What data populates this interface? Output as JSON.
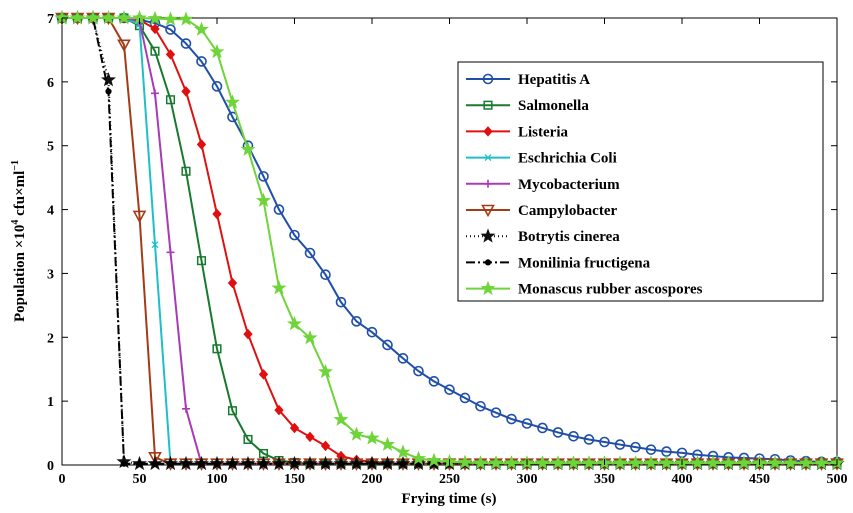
{
  "chart_data": {
    "type": "line",
    "title": "",
    "xlabel": "Frying time (s)",
    "ylabel": "Population ×10",
    "ylabel_sup": "4",
    "ylabel_unit": " cfu×ml",
    "ylabel_unit_sup": "−1",
    "xlim": [
      0,
      500
    ],
    "ylim": [
      0,
      7
    ],
    "xticks": [
      0,
      50,
      100,
      150,
      200,
      250,
      300,
      350,
      400,
      450,
      500
    ],
    "yticks": [
      0,
      1,
      2,
      3,
      4,
      5,
      6,
      7
    ],
    "grid": false,
    "legend_position": "top-right",
    "series": [
      {
        "name": "Hepatitis A",
        "color": "#1f4fa8",
        "marker": "circle",
        "dash": "",
        "x": [
          0,
          10,
          20,
          30,
          40,
          50,
          60,
          70,
          80,
          90,
          100,
          110,
          120,
          130,
          140,
          150,
          160,
          170,
          180,
          190,
          200,
          210,
          220,
          230,
          240,
          250,
          260,
          270,
          280,
          290,
          300,
          310,
          320,
          330,
          340,
          350,
          360,
          370,
          380,
          390,
          400,
          410,
          420,
          430,
          440,
          450,
          460,
          470,
          480,
          490,
          500
        ],
        "y": [
          7,
          7,
          7,
          7,
          7,
          6.97,
          6.92,
          6.82,
          6.6,
          6.32,
          5.93,
          5.45,
          5.0,
          4.52,
          4.0,
          3.6,
          3.32,
          2.98,
          2.55,
          2.25,
          2.08,
          1.88,
          1.67,
          1.47,
          1.31,
          1.18,
          1.05,
          0.92,
          0.82,
          0.72,
          0.65,
          0.58,
          0.51,
          0.45,
          0.4,
          0.36,
          0.32,
          0.28,
          0.24,
          0.21,
          0.19,
          0.16,
          0.14,
          0.12,
          0.11,
          0.1,
          0.09,
          0.07,
          0.06,
          0.05,
          0.05
        ]
      },
      {
        "name": "Salmonella",
        "color": "#177a2e",
        "marker": "square",
        "dash": "",
        "x": [
          0,
          10,
          20,
          30,
          40,
          50,
          60,
          70,
          80,
          90,
          100,
          110,
          120,
          130,
          140,
          150,
          160,
          170,
          180,
          190,
          200,
          210,
          220,
          230,
          240,
          250,
          260,
          270,
          280,
          290,
          300,
          310,
          320,
          330,
          340,
          350,
          360,
          370,
          380,
          390,
          400,
          410,
          420,
          430,
          440,
          450,
          460,
          470,
          480,
          490,
          500
        ],
        "y": [
          7,
          7,
          7,
          7,
          7,
          6.88,
          6.48,
          5.72,
          4.6,
          3.2,
          1.82,
          0.85,
          0.4,
          0.18,
          0.07,
          0.04,
          0.02,
          0.02,
          0.02,
          0.02,
          0.02,
          0.02,
          0.02,
          0.02,
          0.02,
          0.02,
          0.02,
          0.02,
          0.02,
          0.02,
          0.02,
          0.02,
          0.02,
          0.02,
          0.02,
          0.02,
          0.02,
          0.02,
          0.02,
          0.02,
          0.02,
          0.02,
          0.02,
          0.02,
          0.02,
          0.02,
          0.02,
          0.02,
          0.02,
          0.02,
          0.02
        ]
      },
      {
        "name": "Listeria",
        "color": "#e01010",
        "marker": "diamond",
        "dash": "",
        "x": [
          0,
          10,
          20,
          30,
          40,
          50,
          60,
          70,
          80,
          90,
          100,
          110,
          120,
          130,
          140,
          150,
          160,
          170,
          180,
          190,
          200,
          210,
          220,
          230,
          240,
          250,
          260,
          270,
          280,
          290,
          300,
          310,
          320,
          330,
          340,
          350,
          360,
          370,
          380,
          390,
          400,
          410,
          420,
          430,
          440,
          450,
          460,
          470,
          480,
          490,
          500
        ],
        "y": [
          7,
          7,
          7,
          7,
          7,
          6.97,
          6.83,
          6.43,
          5.85,
          5.02,
          3.93,
          2.85,
          2.05,
          1.42,
          0.86,
          0.58,
          0.44,
          0.3,
          0.14,
          0.08,
          0.05,
          0.03,
          0.02,
          0.02,
          0.02,
          0.02,
          0.02,
          0.02,
          0.02,
          0.02,
          0.02,
          0.02,
          0.02,
          0.02,
          0.02,
          0.02,
          0.02,
          0.02,
          0.02,
          0.02,
          0.02,
          0.02,
          0.02,
          0.02,
          0.02,
          0.02,
          0.02,
          0.02,
          0.02,
          0.02,
          0.02
        ]
      },
      {
        "name": "Eschrichia Coli",
        "color": "#1fbfc7",
        "marker": "x",
        "dash": "",
        "x": [
          0,
          10,
          20,
          30,
          40,
          50,
          60,
          70,
          80,
          90,
          100,
          110,
          120,
          130,
          140,
          150,
          160,
          170,
          180,
          190,
          200,
          210,
          220,
          230,
          240,
          250,
          260,
          270,
          280,
          290,
          300,
          310,
          320,
          330,
          340,
          350,
          360,
          370,
          380,
          390,
          400,
          410,
          420,
          430,
          440,
          450,
          460,
          470,
          480,
          490,
          500
        ],
        "y": [
          7,
          7,
          7,
          7,
          7,
          6.9,
          3.45,
          0.02,
          0.02,
          0.02,
          0.02,
          0.02,
          0.02,
          0.02,
          0.02,
          0.02,
          0.02,
          0.02,
          0.02,
          0.02,
          0.02,
          0.02,
          0.02,
          0.02,
          0.02,
          0.02,
          0.02,
          0.02,
          0.02,
          0.02,
          0.02,
          0.02,
          0.02,
          0.02,
          0.02,
          0.02,
          0.02,
          0.02,
          0.02,
          0.02,
          0.02,
          0.02,
          0.02,
          0.02,
          0.02,
          0.02,
          0.02,
          0.02,
          0.02,
          0.02,
          0.02
        ]
      },
      {
        "name": "Mycobacterium",
        "color": "#a83ab8",
        "marker": "plus",
        "dash": "",
        "x": [
          0,
          10,
          20,
          30,
          40,
          50,
          60,
          70,
          80,
          90,
          100,
          110,
          120,
          130,
          140,
          150,
          160,
          170,
          180,
          190,
          200,
          210,
          220,
          230,
          240,
          250,
          260,
          270,
          280,
          290,
          300,
          310,
          320,
          330,
          340,
          350,
          360,
          370,
          380,
          390,
          400,
          410,
          420,
          430,
          440,
          450,
          460,
          470,
          480,
          490,
          500
        ],
        "y": [
          7,
          7,
          7,
          7,
          7,
          6.95,
          5.82,
          3.33,
          0.88,
          0.02,
          0.02,
          0.02,
          0.02,
          0.02,
          0.02,
          0.02,
          0.02,
          0.02,
          0.02,
          0.02,
          0.02,
          0.02,
          0.02,
          0.02,
          0.02,
          0.02,
          0.02,
          0.02,
          0.02,
          0.02,
          0.02,
          0.02,
          0.02,
          0.02,
          0.02,
          0.02,
          0.02,
          0.02,
          0.02,
          0.02,
          0.02,
          0.02,
          0.02,
          0.02,
          0.02,
          0.02,
          0.02,
          0.02,
          0.02,
          0.02,
          0.02
        ]
      },
      {
        "name": "Campylobacter",
        "color": "#a33b17",
        "marker": "triangle-down",
        "dash": "",
        "x": [
          0,
          10,
          20,
          30,
          40,
          50,
          60,
          70,
          80,
          90,
          100,
          110,
          120,
          130,
          140,
          150,
          160,
          170,
          180,
          190,
          200,
          210,
          220,
          230,
          240,
          250,
          260,
          270,
          280,
          290,
          300,
          310,
          320,
          330,
          340,
          350,
          360,
          370,
          380,
          390,
          400,
          410,
          420,
          430,
          440,
          450,
          460,
          470,
          480,
          490,
          500
        ],
        "y": [
          7,
          7,
          7,
          7,
          6.58,
          3.9,
          0.12,
          0.02,
          0.02,
          0.02,
          0.02,
          0.02,
          0.02,
          0.02,
          0.02,
          0.02,
          0.02,
          0.02,
          0.02,
          0.02,
          0.02,
          0.02,
          0.02,
          0.02,
          0.02,
          0.02,
          0.02,
          0.02,
          0.02,
          0.02,
          0.02,
          0.02,
          0.02,
          0.02,
          0.02,
          0.02,
          0.02,
          0.02,
          0.02,
          0.02,
          0.02,
          0.02,
          0.02,
          0.02,
          0.02,
          0.02,
          0.02,
          0.02,
          0.02,
          0.02,
          0.02
        ]
      },
      {
        "name": "Botrytis cinerea",
        "color": "#111111",
        "marker": "star",
        "dash": "1,3",
        "x": [
          0,
          10,
          20,
          30,
          40,
          50,
          60,
          70,
          80,
          90,
          100,
          110,
          120,
          130,
          140,
          150,
          160,
          170,
          180,
          190,
          200,
          210,
          220,
          230,
          240,
          250,
          260,
          270,
          280,
          290,
          300,
          310,
          320,
          330,
          340,
          350,
          360,
          370,
          380,
          390,
          400,
          410,
          420,
          430,
          440,
          450,
          460,
          470,
          480,
          490,
          500
        ],
        "y": [
          7,
          7,
          7,
          6.03,
          0.05,
          0.02,
          0.02,
          0.02,
          0.02,
          0.02,
          0.02,
          0.02,
          0.02,
          0.02,
          0.02,
          0.02,
          0.02,
          0.02,
          0.02,
          0.02,
          0.02,
          0.02,
          0.02,
          0.02,
          0.02,
          0.02,
          0.02,
          0.02,
          0.02,
          0.02,
          0.02,
          0.02,
          0.02,
          0.02,
          0.02,
          0.02,
          0.02,
          0.02,
          0.02,
          0.02,
          0.02,
          0.02,
          0.02,
          0.02,
          0.02,
          0.02,
          0.02,
          0.02,
          0.02,
          0.02,
          0.02
        ]
      },
      {
        "name": "Monilinia fructigena",
        "color": "#000000",
        "marker": "dot",
        "dash": "9,3,2,3",
        "x": [
          0,
          10,
          20,
          30,
          40,
          50,
          60,
          70,
          80,
          90,
          100,
          110,
          120,
          130,
          140,
          150,
          160,
          170,
          180,
          190,
          200,
          210,
          220,
          230,
          240,
          250,
          260,
          270,
          280,
          290,
          300,
          310,
          320,
          330,
          340,
          350,
          360,
          370,
          380,
          390,
          400,
          410,
          420,
          430,
          440,
          450,
          460,
          470,
          480,
          490,
          500
        ],
        "y": [
          7,
          7,
          7,
          5.85,
          0.02,
          0.02,
          0.02,
          0.02,
          0.02,
          0.02,
          0.02,
          0.02,
          0.02,
          0.02,
          0.02,
          0.02,
          0.02,
          0.02,
          0.02,
          0.02,
          0.02,
          0.02,
          0.02,
          0.02,
          0.02,
          0.02,
          0.02,
          0.02,
          0.02,
          0.02,
          0.02,
          0.02,
          0.02,
          0.02,
          0.02,
          0.02,
          0.02,
          0.02,
          0.02,
          0.02,
          0.02,
          0.02,
          0.02,
          0.02,
          0.02,
          0.02,
          0.02,
          0.02,
          0.02,
          0.02,
          0.02
        ]
      },
      {
        "name": "Monascus rubber ascospores",
        "color": "#6ed43a",
        "marker": "star",
        "dash": "",
        "x": [
          0,
          10,
          20,
          30,
          40,
          50,
          60,
          70,
          80,
          90,
          100,
          110,
          120,
          130,
          140,
          150,
          160,
          170,
          180,
          190,
          200,
          210,
          220,
          230,
          240,
          250,
          260,
          270,
          280,
          290,
          300,
          310,
          320,
          330,
          340,
          350,
          360,
          370,
          380,
          390,
          400,
          410,
          420,
          430,
          440,
          450,
          460,
          470,
          480,
          490,
          500
        ],
        "y": [
          7,
          7,
          7,
          7,
          7,
          7,
          6.99,
          6.98,
          6.98,
          6.82,
          6.47,
          5.68,
          4.94,
          4.14,
          2.77,
          2.21,
          1.99,
          1.46,
          0.71,
          0.48,
          0.42,
          0.32,
          0.2,
          0.1,
          0.07,
          0.05,
          0.04,
          0.03,
          0.03,
          0.03,
          0.03,
          0.03,
          0.03,
          0.03,
          0.03,
          0.03,
          0.03,
          0.03,
          0.03,
          0.03,
          0.03,
          0.03,
          0.03,
          0.03,
          0.03,
          0.03,
          0.03,
          0.03,
          0.03,
          0.03,
          0.03
        ]
      }
    ]
  }
}
